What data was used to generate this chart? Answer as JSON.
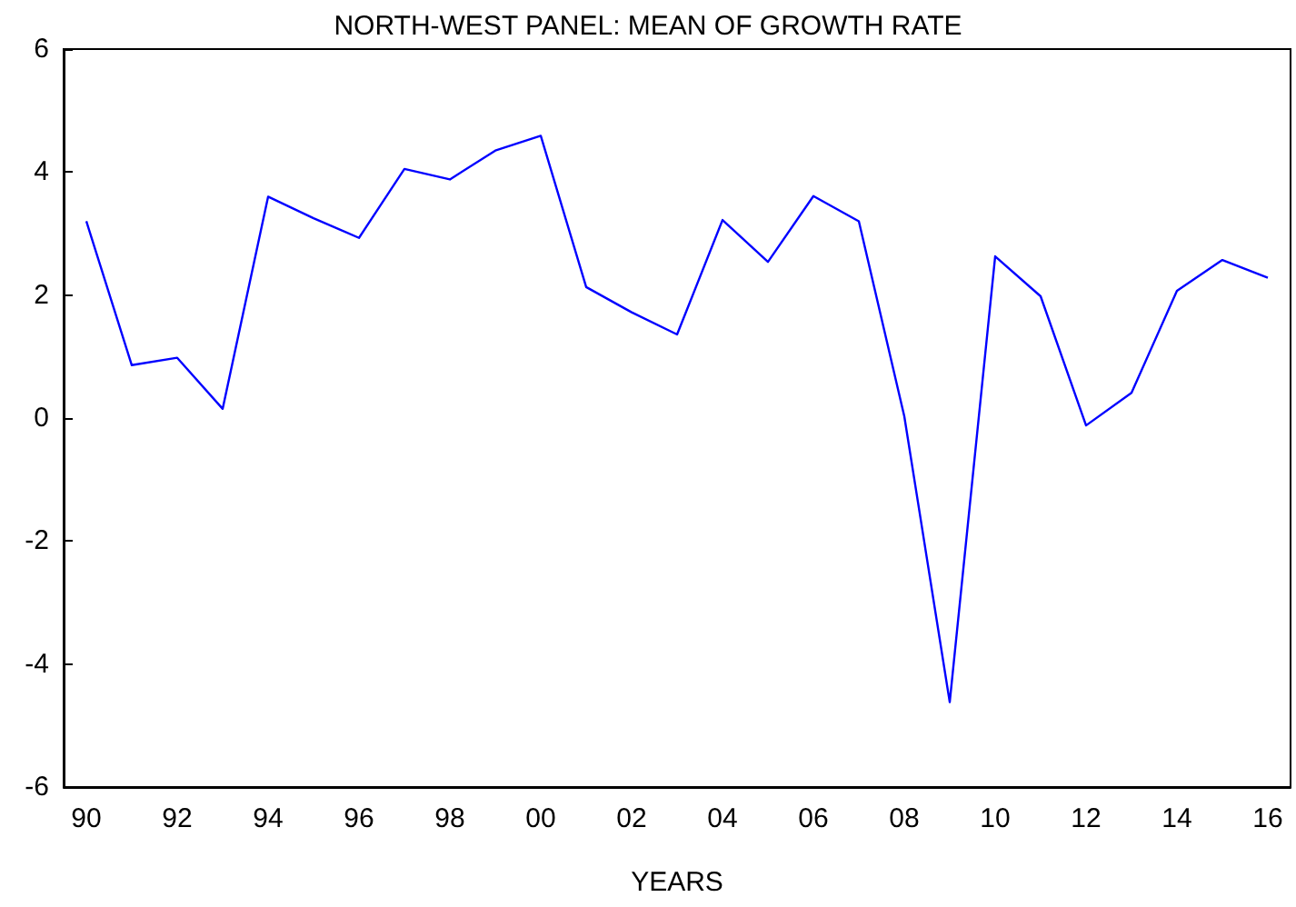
{
  "chart_data": {
    "type": "line",
    "title": "NORTH-WEST PANEL: MEAN OF GROWTH RATE",
    "xlabel": "YEARS",
    "categories": [
      "90",
      null,
      "92",
      null,
      "94",
      null,
      "96",
      null,
      "98",
      null,
      "00",
      null,
      "02",
      null,
      "04",
      null,
      "06",
      null,
      "08",
      null,
      "10",
      null,
      "12",
      null,
      "14",
      null,
      "16"
    ],
    "series": [
      {
        "color": "#0000ff",
        "values": [
          3.2,
          0.86,
          0.98,
          0.15,
          3.6,
          3.25,
          2.93,
          4.05,
          3.88,
          4.35,
          4.59,
          2.13,
          1.72,
          1.36,
          3.22,
          2.54,
          3.61,
          3.2,
          0.03,
          -4.62,
          2.63,
          1.98,
          -0.12,
          0.41,
          2.07,
          2.57,
          2.28
        ]
      }
    ],
    "ylim": [
      -6,
      6
    ],
    "yticks": [
      -6,
      -4,
      -2,
      0,
      2,
      4,
      6
    ],
    "marker": "none",
    "line_style": "solid"
  }
}
